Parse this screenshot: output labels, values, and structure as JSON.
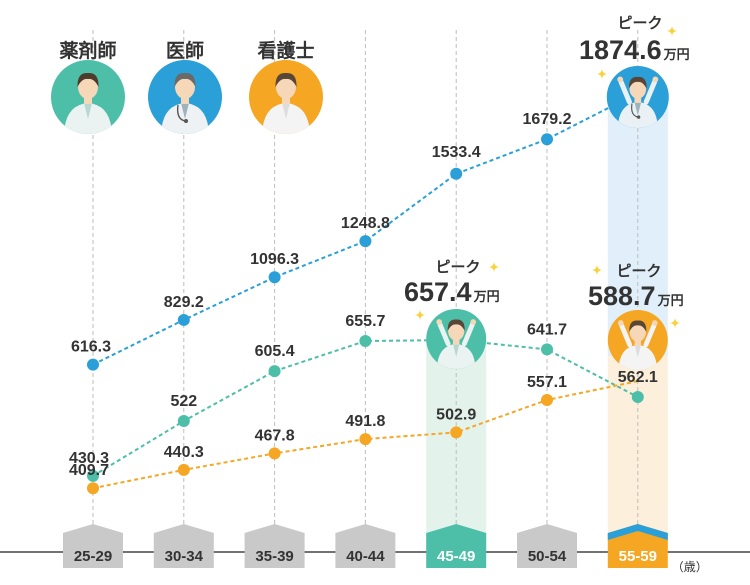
{
  "chart_data": {
    "type": "line",
    "categories": [
      "25-29",
      "30-34",
      "35-39",
      "40-44",
      "45-49",
      "50-54",
      "55-59"
    ],
    "x_unit": "（歳）",
    "series": [
      {
        "name": "医師",
        "color": "#2a9fd8",
        "icon": "doctor-icon",
        "values": [
          616.3,
          829.2,
          1096.3,
          1248.8,
          1533.4,
          1679.2,
          1874.6
        ],
        "labels": [
          "616.3",
          "829.2",
          "1096.3",
          "1248.8",
          "1533.4",
          "1679.2",
          null
        ]
      },
      {
        "name": "薬剤師",
        "color": "#4dbfa8",
        "icon": "pharmacist-icon",
        "values": [
          430.3,
          522,
          605.4,
          655.7,
          657.4,
          641.7,
          562.1
        ],
        "labels": [
          "430.3",
          "522",
          "605.4",
          "655.7",
          null,
          "641.7",
          "562.1"
        ]
      },
      {
        "name": "看護士",
        "color": "#f5a623",
        "icon": "nurse-icon",
        "values": [
          409.7,
          440.3,
          467.8,
          491.8,
          502.9,
          557.1,
          588.7
        ],
        "labels": [
          "409.7",
          "440.3",
          "467.8",
          "491.8",
          "502.9",
          "557.1",
          null
        ]
      }
    ],
    "legend_order": [
      "薬剤師",
      "医師",
      "看護士"
    ],
    "peaks": [
      {
        "series": "医師",
        "category": "55-59",
        "label": "ピーク",
        "value": "1874.6",
        "unit": "万円"
      },
      {
        "series": "薬剤師",
        "category": "45-49",
        "label": "ピーク",
        "value": "657.4",
        "unit": "万円"
      },
      {
        "series": "看護士",
        "category": "55-59",
        "label": "ピーク",
        "value": "588.7",
        "unit": "万円"
      }
    ],
    "grid": "vertical dashed",
    "legend_position": "top-left"
  }
}
